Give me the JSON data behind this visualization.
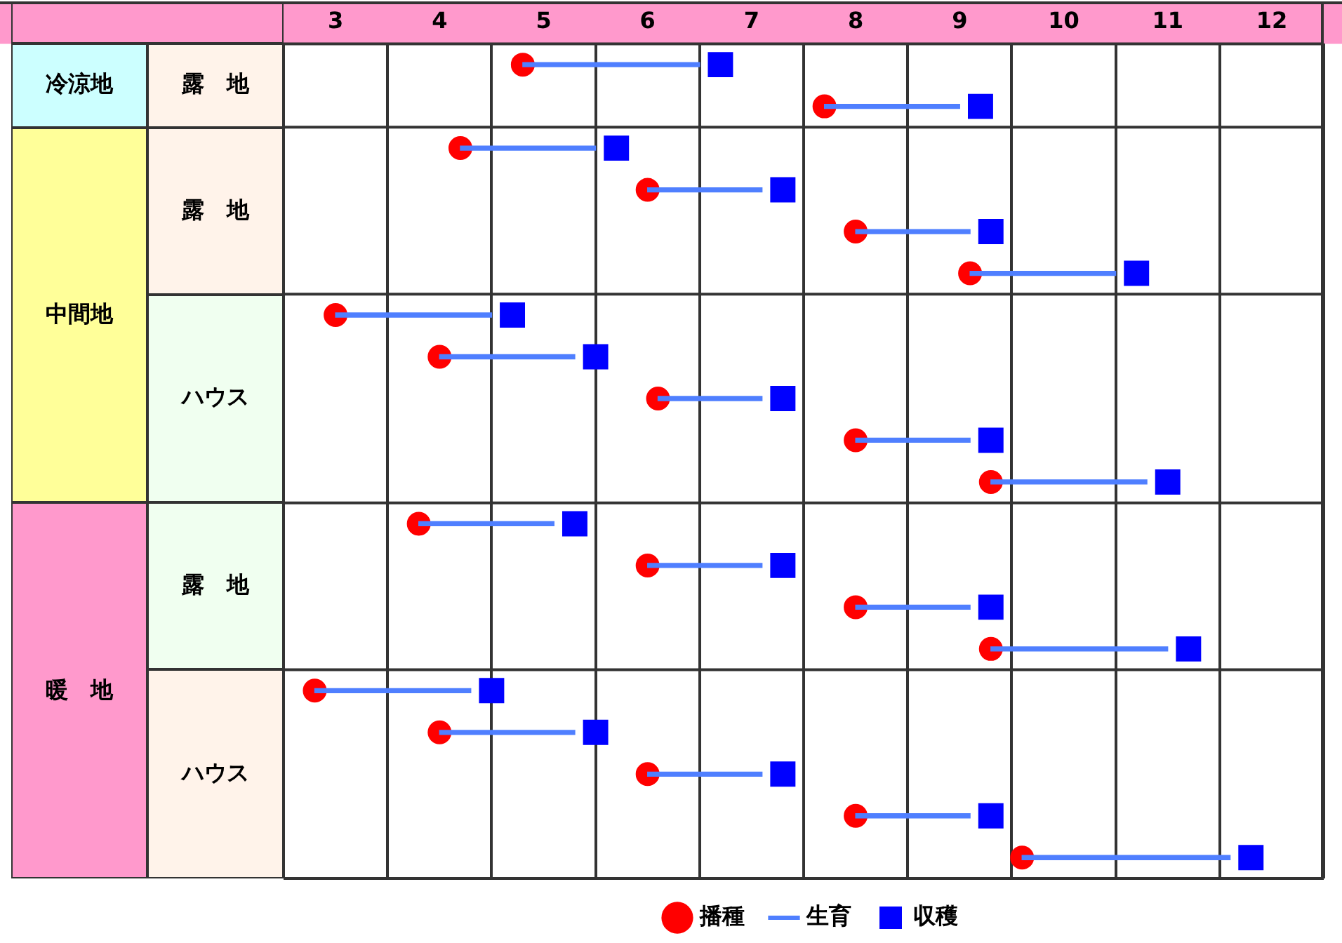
{
  "chart_data": {
    "type": "bar",
    "orientation": "horizontal",
    "categories": [
      null,
      null,
      null,
      null,
      null,
      null,
      null,
      null,
      null,
      null,
      null,
      null,
      null,
      null,
      null,
      null,
      null,
      null,
      null,
      null
    ],
    "series": [
      {
        "name": "播種",
        "type": "scatter",
        "marker": "circle",
        "color": "#ff0000",
        "values": [
          5.3,
          8.2,
          4.7,
          6.5,
          8.5,
          9.6,
          3.5,
          4.5,
          6.6,
          8.5,
          9.8,
          4.3,
          6.5,
          8.5,
          9.8,
          3.3,
          4.5,
          6.5,
          8.5,
          10.1
        ]
      },
      {
        "name": "生育",
        "color": "#4f7fff",
        "base": [
          5.3,
          8.2,
          4.7,
          6.5,
          8.5,
          9.6,
          3.5,
          4.5,
          6.6,
          8.5,
          9.8,
          4.3,
          6.5,
          8.5,
          9.8,
          3.3,
          4.5,
          6.5,
          8.5,
          10.1
        ],
        "values": [
          1.7,
          1.3,
          1.3,
          1.1,
          1.1,
          1.4,
          1.5,
          1.3,
          1.0,
          1.1,
          1.5,
          1.3,
          1.1,
          1.1,
          1.7,
          1.5,
          1.3,
          1.1,
          1.1,
          2.0
        ]
      },
      {
        "name": "収穫",
        "type": "scatter",
        "marker": "square",
        "color": "#0000ff",
        "values": [
          7.2,
          9.7,
          6.2,
          7.8,
          9.8,
          11.2,
          5.2,
          6.0,
          7.8,
          9.8,
          11.5,
          5.8,
          7.8,
          9.8,
          11.7,
          5.0,
          6.0,
          7.8,
          9.8,
          12.3
        ]
      }
    ],
    "xlim": [
      3,
      13
    ],
    "xticks": [
      {
        "value": 3,
        "label": null
      },
      {
        "value": 3.5,
        "label": "3"
      },
      {
        "value": 4,
        "label": null
      },
      {
        "value": 4.5,
        "label": "4"
      },
      {
        "value": 5,
        "label": null
      },
      {
        "value": 5.5,
        "label": "5"
      },
      {
        "value": 6,
        "label": null
      },
      {
        "value": 6.5,
        "label": "6"
      },
      {
        "value": 7,
        "label": null
      },
      {
        "value": 7.5,
        "label": "7"
      },
      {
        "value": 8,
        "label": null
      },
      {
        "value": 8.5,
        "label": "8"
      },
      {
        "value": 9,
        "label": null
      },
      {
        "value": 9.5,
        "label": "9"
      },
      {
        "value": 10,
        "label": null
      },
      {
        "value": 10.5,
        "label": "10"
      },
      {
        "value": 11,
        "label": null
      },
      {
        "value": 11.5,
        "label": "11"
      },
      {
        "value": 12,
        "label": null
      },
      {
        "value": 12.5,
        "label": "12"
      },
      {
        "value": 13,
        "label": null
      }
    ],
    "grid": "x",
    "legend": "bottom",
    "tick_labels": "x",
    "annotations": [
      "冷涼地",
      "露　地",
      "中間地",
      "露　地",
      "ハウス",
      "暖　地",
      "露　地",
      "ハウス"
    ]
  }
}
